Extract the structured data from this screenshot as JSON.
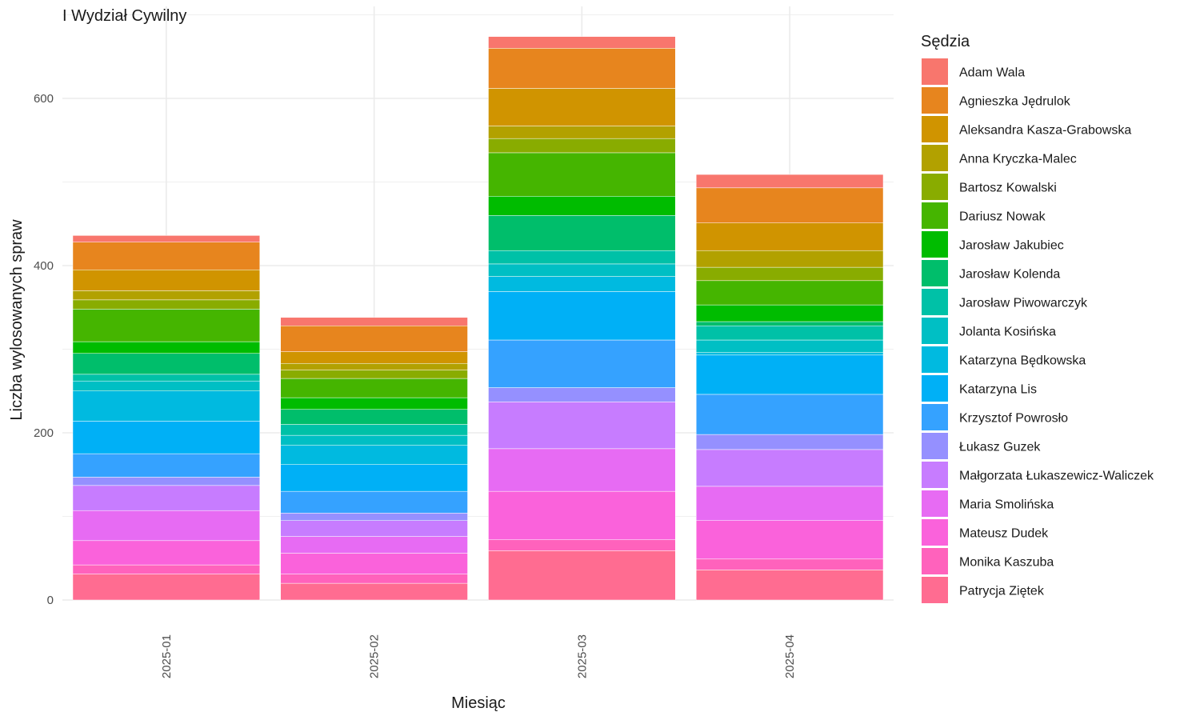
{
  "chart_data": {
    "type": "bar",
    "stacked": true,
    "title": "I Wydział Cywilny",
    "xlabel": "Miesiąc",
    "ylabel": "Liczba wylosowanych spraw",
    "ylim": [
      0,
      700
    ],
    "yticks": [
      0,
      200,
      400,
      600
    ],
    "grid": true,
    "legend_title": "Sędzia",
    "legend_position": "right",
    "categories": [
      "2025-01",
      "2025-02",
      "2025-03",
      "2025-04"
    ],
    "series": [
      {
        "name": "Adam Wala",
        "color": "#F8766D",
        "values": [
          8,
          10,
          14,
          16
        ]
      },
      {
        "name": "Agnieszka Jędrulok",
        "color": "#E7851E",
        "values": [
          33,
          31,
          48,
          42
        ]
      },
      {
        "name": "Aleksandra Kasza-Grabowska",
        "color": "#D09400",
        "values": [
          25,
          14,
          45,
          33
        ]
      },
      {
        "name": "Anna Kryczka-Malec",
        "color": "#B2A100",
        "values": [
          11,
          8,
          15,
          20
        ]
      },
      {
        "name": "Bartosz Kowalski",
        "color": "#89AC00",
        "values": [
          11,
          10,
          17,
          16
        ]
      },
      {
        "name": "Dariusz Nowak",
        "color": "#45B500",
        "values": [
          39,
          23,
          52,
          29
        ]
      },
      {
        "name": "Jarosław Jakubiec",
        "color": "#00BC00",
        "values": [
          14,
          14,
          23,
          20
        ]
      },
      {
        "name": "Jarosław Kolenda",
        "color": "#00BE6B",
        "values": [
          25,
          18,
          42,
          5
        ]
      },
      {
        "name": "Jarosław Piwowarczyk",
        "color": "#00C1A7",
        "values": [
          8,
          13,
          16,
          17
        ]
      },
      {
        "name": "Jolanta Kosińska",
        "color": "#00BFC4",
        "values": [
          12,
          12,
          15,
          15
        ]
      },
      {
        "name": "Katarzyna Będkowska",
        "color": "#00BAE0",
        "values": [
          36,
          23,
          18,
          3
        ]
      },
      {
        "name": "Katarzyna Lis",
        "color": "#00B0F6",
        "values": [
          39,
          32,
          58,
          47
        ]
      },
      {
        "name": "Krzysztof Powrosło",
        "color": "#35A2FF",
        "values": [
          28,
          26,
          57,
          48
        ]
      },
      {
        "name": "Łukasz Guzek",
        "color": "#9590FF",
        "values": [
          10,
          9,
          17,
          18
        ]
      },
      {
        "name": "Małgorzata Łukaszewicz-Waliczek",
        "color": "#C77CFF",
        "values": [
          30,
          19,
          56,
          44
        ]
      },
      {
        "name": "Maria Smolińska",
        "color": "#E76BF3",
        "values": [
          36,
          20,
          51,
          41
        ]
      },
      {
        "name": "Mateusz Dudek",
        "color": "#FA62DB",
        "values": [
          29,
          25,
          58,
          46
        ]
      },
      {
        "name": "Monika Kaszuba",
        "color": "#FF62BC",
        "values": [
          11,
          11,
          13,
          13
        ]
      },
      {
        "name": "Patrycja Ziętek",
        "color": "#FF6C91",
        "values": [
          31,
          20,
          59,
          36
        ]
      }
    ]
  }
}
